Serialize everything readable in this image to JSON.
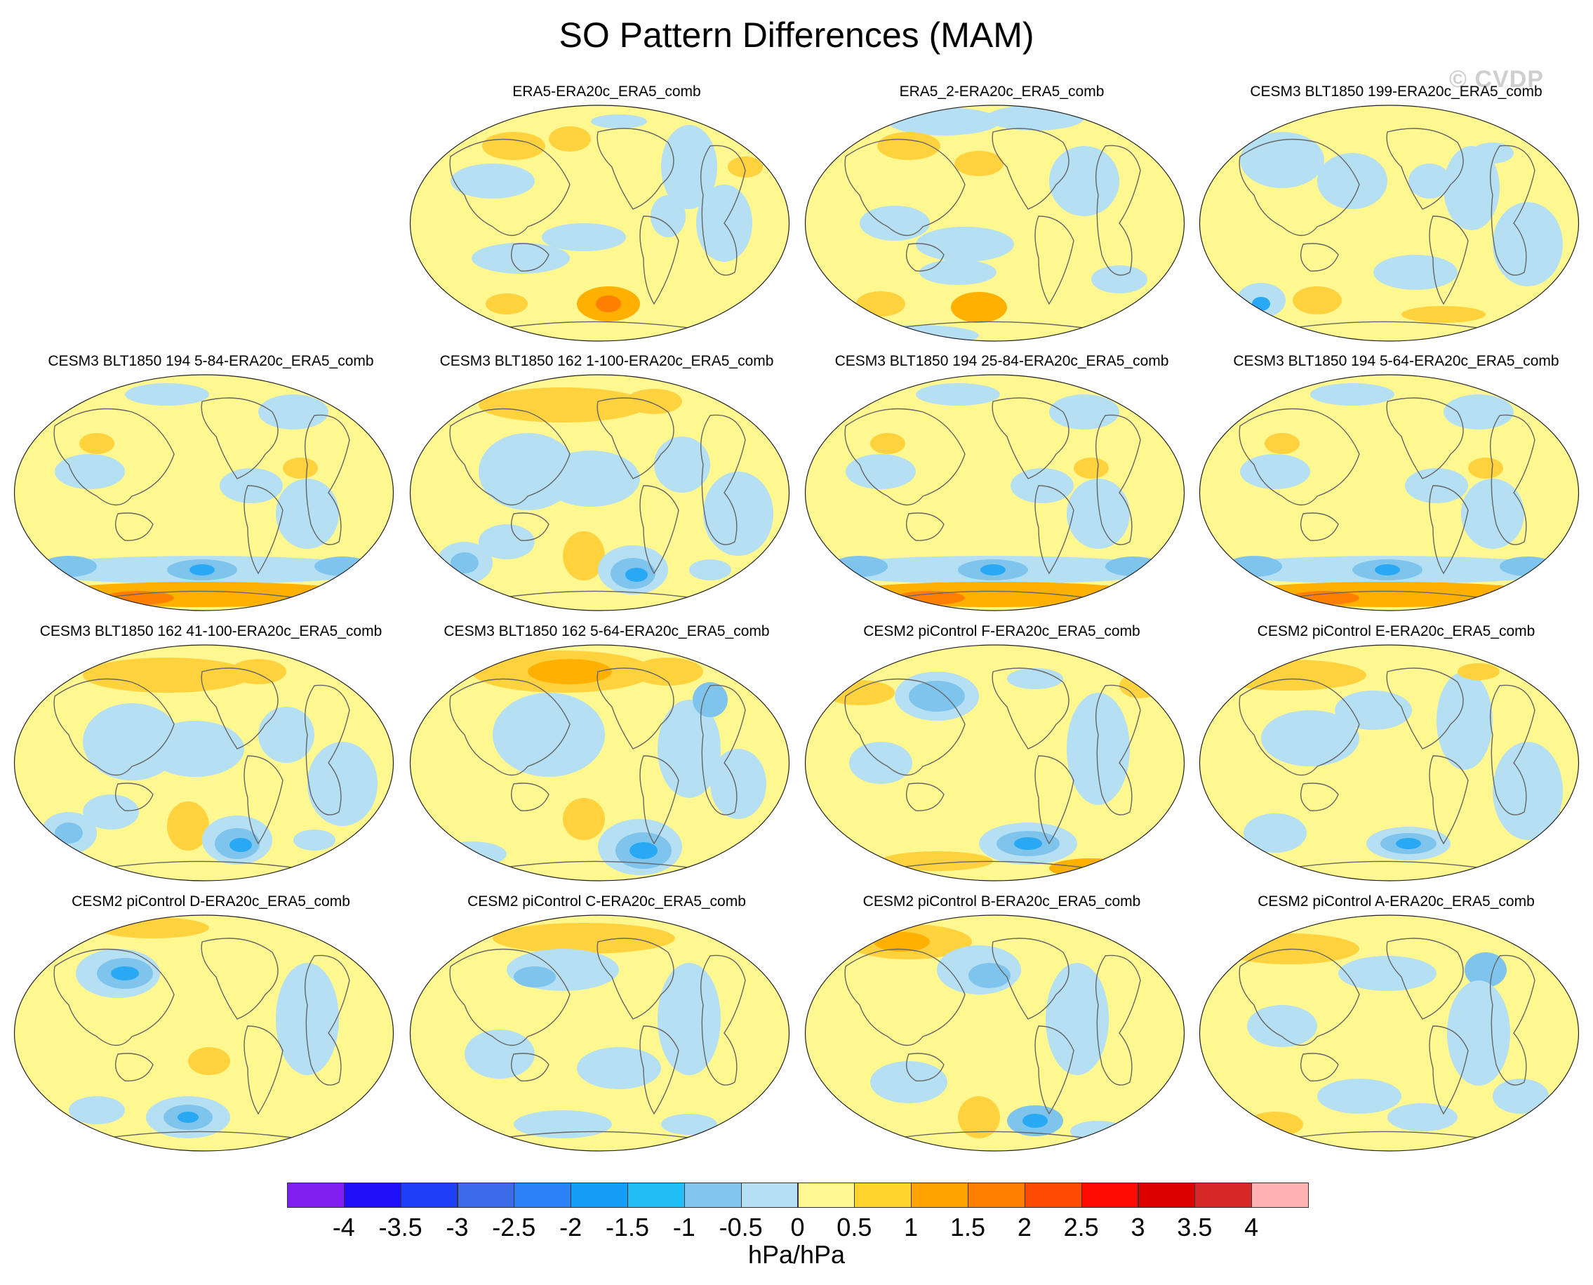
{
  "title": "SO Pattern Differences (MAM)",
  "watermark": "© CVDP",
  "units": "hPa/hPa",
  "palette": {
    "yellow": "#fff78f",
    "lightblue": "#b5dff2",
    "gold": "#ffd23e",
    "orange": "#ffb000",
    "darkorange": "#ff8000",
    "midblue": "#7fc4ec",
    "blue": "#29a8f4",
    "deepblue": "#1e8ff5",
    "coast": "#666666"
  },
  "colorbar": {
    "colors": [
      "#8020f0",
      "#2010fa",
      "#1f3ef7",
      "#3c6ae8",
      "#2a80f6",
      "#149ef5",
      "#20bdf7",
      "#82c6ee",
      "#b5dff2",
      "#fff78f",
      "#ffd42d",
      "#ffa300",
      "#ff7f00",
      "#ff4b00",
      "#ff0a00",
      "#dc0000",
      "#d62828",
      "#ffb2b2"
    ],
    "labels": [
      "-4",
      "-3.5",
      "-3",
      "-2.5",
      "-2",
      "-1.5",
      "-1",
      "-0.5",
      "0",
      "0.5",
      "1",
      "1.5",
      "2",
      "2.5",
      "3",
      "3.5",
      "4"
    ]
  },
  "panels": [
    {
      "label": "ERA5-ERA20c_ERA5_comb",
      "row": 0,
      "col": 1,
      "variant": 0
    },
    {
      "label": "ERA5_2-ERA20c_ERA5_comb",
      "row": 0,
      "col": 2,
      "variant": 1
    },
    {
      "label": "CESM3 BLT1850 199-ERA20c_ERA5_comb",
      "row": 0,
      "col": 3,
      "variant": 2
    },
    {
      "label": "CESM3 BLT1850 194 5-84-ERA20c_ERA5_comb",
      "row": 1,
      "col": 0,
      "variant": 3
    },
    {
      "label": "CESM3 BLT1850 162 1-100-ERA20c_ERA5_comb",
      "row": 1,
      "col": 1,
      "variant": 4
    },
    {
      "label": "CESM3 BLT1850 194 25-84-ERA20c_ERA5_comb",
      "row": 1,
      "col": 2,
      "variant": 3
    },
    {
      "label": "CESM3 BLT1850 194 5-64-ERA20c_ERA5_comb",
      "row": 1,
      "col": 3,
      "variant": 3
    },
    {
      "label": "CESM3 BLT1850 162 41-100-ERA20c_ERA5_comb",
      "row": 2,
      "col": 0,
      "variant": 4
    },
    {
      "label": "CESM3 BLT1850 162 5-64-ERA20c_ERA5_comb",
      "row": 2,
      "col": 1,
      "variant": 5
    },
    {
      "label": "CESM2 piControl F-ERA20c_ERA5_comb",
      "row": 2,
      "col": 2,
      "variant": 6
    },
    {
      "label": "CESM2 piControl E-ERA20c_ERA5_comb",
      "row": 2,
      "col": 3,
      "variant": 7
    },
    {
      "label": "CESM2 piControl D-ERA20c_ERA5_comb",
      "row": 3,
      "col": 0,
      "variant": 8
    },
    {
      "label": "CESM2 piControl C-ERA20c_ERA5_comb",
      "row": 3,
      "col": 1,
      "variant": 9
    },
    {
      "label": "CESM2 piControl B-ERA20c_ERA5_comb",
      "row": 3,
      "col": 2,
      "variant": 10
    },
    {
      "label": "CESM2 piControl A-ERA20c_ERA5_comb",
      "row": 3,
      "col": 3,
      "variant": 11
    }
  ]
}
